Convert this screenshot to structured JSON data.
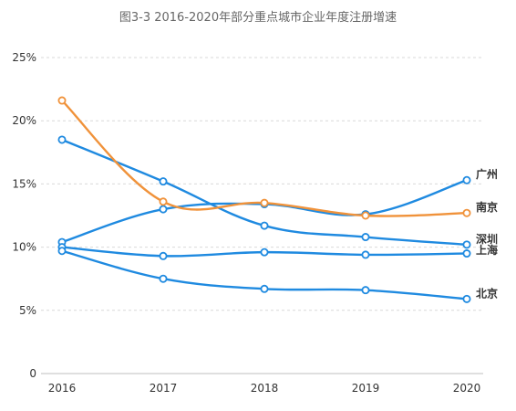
{
  "chart_data": {
    "type": "line",
    "title": "图3-3 2016-2020年部分重点城市企业年度注册增速",
    "x": [
      "2016",
      "2017",
      "2018",
      "2019",
      "2020"
    ],
    "ylim": [
      0,
      25
    ],
    "yticks": [
      0,
      5,
      10,
      15,
      20,
      25
    ],
    "ytick_labels": [
      "0",
      "5%",
      "10%",
      "15%",
      "20%",
      "25%"
    ],
    "grid": true,
    "legend": "none",
    "series": [
      {
        "name": "广州",
        "color": "#1f8ae0",
        "values": [
          10.4,
          13.0,
          13.4,
          12.6,
          15.3
        ]
      },
      {
        "name": "南京",
        "color": "#f0923a",
        "values": [
          21.6,
          13.6,
          13.5,
          12.5,
          12.7
        ]
      },
      {
        "name": "深圳",
        "color": "#1f8ae0",
        "values": [
          18.5,
          15.2,
          11.7,
          10.8,
          10.2
        ]
      },
      {
        "name": "上海",
        "color": "#1f8ae0",
        "values": [
          10.0,
          9.3,
          9.6,
          9.4,
          9.5
        ]
      },
      {
        "name": "北京",
        "color": "#1f8ae0",
        "values": [
          9.7,
          7.5,
          6.7,
          6.6,
          5.9
        ]
      }
    ]
  }
}
